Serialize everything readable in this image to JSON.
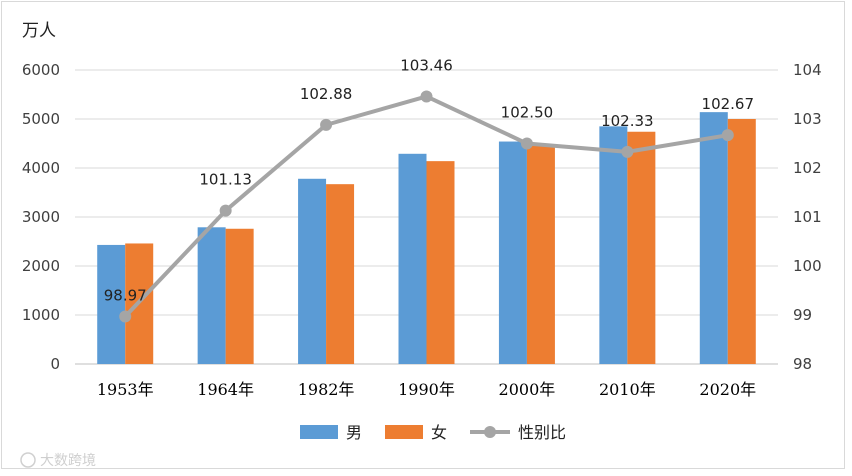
{
  "watermark": "大数跨境",
  "chart_data": {
    "type": "bar",
    "title": "",
    "ylabel": "万人",
    "y2label": "",
    "categories": [
      "1953年",
      "1964年",
      "1982年",
      "1990年",
      "2000年",
      "2010年",
      "2020年"
    ],
    "ylim": [
      0,
      6000
    ],
    "yticks": [
      "0",
      "1000",
      "2000",
      "3000",
      "4000",
      "5000",
      "6000"
    ],
    "y2lim": [
      98,
      104
    ],
    "y2ticks": [
      "98",
      "99",
      "100",
      "101",
      "102",
      "103",
      "104"
    ],
    "grid": true,
    "legend_position": "bottom",
    "series": [
      {
        "name": "男",
        "type": "bar",
        "axis": "left",
        "color": "#5b9bd5",
        "values": [
          2430,
          2790,
          3780,
          4290,
          4540,
          4850,
          5140
        ]
      },
      {
        "name": "女",
        "type": "bar",
        "axis": "left",
        "color": "#ed7d31",
        "values": [
          2460,
          2760,
          3670,
          4140,
          4450,
          4740,
          5000
        ]
      },
      {
        "name": "性别比",
        "type": "line",
        "axis": "right",
        "color": "#a5a5a5",
        "values": [
          98.97,
          101.13,
          102.88,
          103.46,
          102.5,
          102.33,
          102.67
        ],
        "labels": [
          "98.97",
          "101.13",
          "102.88",
          "103.46",
          "102.50",
          "102.33",
          "102.67"
        ]
      }
    ]
  }
}
